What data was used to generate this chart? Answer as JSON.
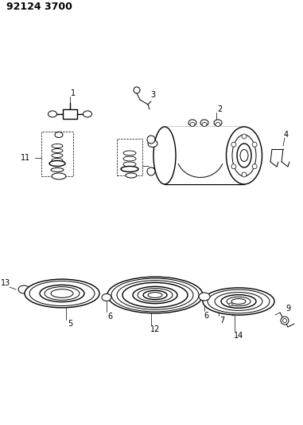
{
  "title": "92124 3700",
  "bg_color": "#ffffff",
  "line_color": "#000000",
  "title_fontsize": 9,
  "label_fontsize": 7,
  "fig_width": 3.81,
  "fig_height": 5.33,
  "dpi": 100
}
